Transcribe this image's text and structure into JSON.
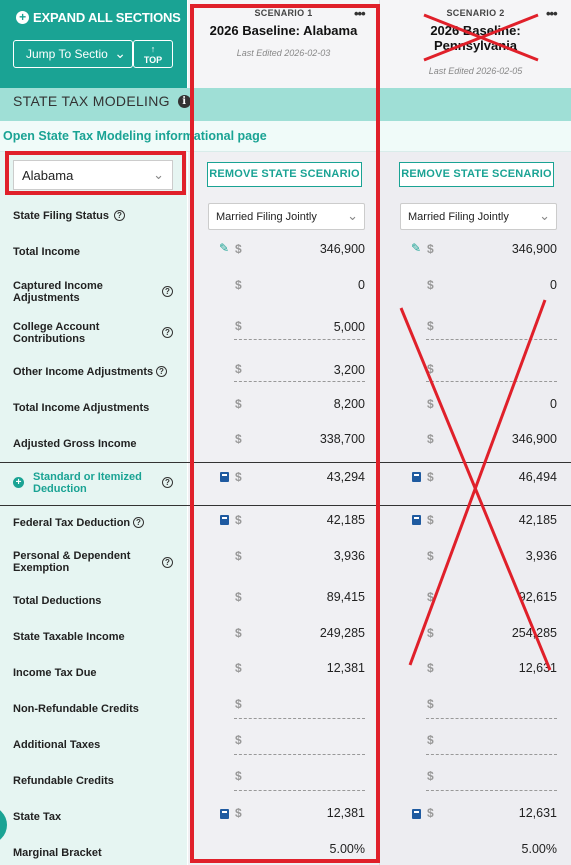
{
  "nav": {
    "expand_all": "EXPAND ALL SECTIONS",
    "jump_to_section": "Jump To Sectio",
    "top": "TOP"
  },
  "section": {
    "title": "STATE TAX MODELING",
    "info_link": "Open State Tax Modeling informational page"
  },
  "state_select": {
    "value": "Alabama"
  },
  "scenarios": [
    {
      "label": "SCENARIO 1",
      "name": "2026 Baseline: Alabama",
      "last_edited": "Last Edited 2026-02-03",
      "remove_label": "REMOVE STATE SCENARIO",
      "filing_status": "Married Filing Jointly"
    },
    {
      "label": "SCENARIO 2",
      "name_line1": "2026 Baseline:",
      "name_line2": "Pennsylvania",
      "last_edited": "Last Edited 2026-02-05",
      "remove_label": "REMOVE STATE SCENARIO",
      "filing_status": "Married Filing Jointly"
    }
  ],
  "rows": {
    "filing_status": "State Filing Status",
    "total_income": "Total Income",
    "captured_adj_1": "Captured Income",
    "captured_adj_2": "Adjustments",
    "college_1": "College Account",
    "college_2": "Contributions",
    "other_adj": "Other Income Adjustments",
    "total_adj": "Total Income Adjustments",
    "agi": "Adjusted Gross Income",
    "std_itemized_1": "Standard or Itemized",
    "std_itemized_2": "Deduction",
    "federal_tax_deduction": "Federal Tax Deduction",
    "personal_1": "Personal & Dependent",
    "personal_2": "Exemption",
    "total_deductions": "Total Deductions",
    "state_taxable_income": "State Taxable Income",
    "income_tax_due": "Income Tax Due",
    "nonrefundable": "Non-Refundable Credits",
    "additional_taxes": "Additional Taxes",
    "refundable": "Refundable Credits",
    "state_tax": "State Tax",
    "marginal_bracket": "Marginal Bracket"
  },
  "values": {
    "dollar": "$",
    "s1": {
      "total_income": "346,900",
      "captured": "0",
      "college": "5,000",
      "other": "3,200",
      "total_adj": "8,200",
      "agi": "338,700",
      "std": "43,294",
      "federal": "42,185",
      "personal": "3,936",
      "total_ded": "89,415",
      "taxable": "249,285",
      "tax_due": "12,381",
      "state_tax": "12,381",
      "marginal": "5.00%"
    },
    "s2": {
      "total_income": "346,900",
      "captured": "0",
      "total_adj": "0",
      "agi": "346,900",
      "std": "46,494",
      "federal": "42,185",
      "personal": "3,936",
      "total_ded": "92,615",
      "taxable": "254,285",
      "tax_due": "12,631",
      "state_tax": "12,631",
      "marginal": "5.00%"
    }
  },
  "colors": {
    "teal": "#1aa394",
    "annotation_red": "#e0202a"
  }
}
